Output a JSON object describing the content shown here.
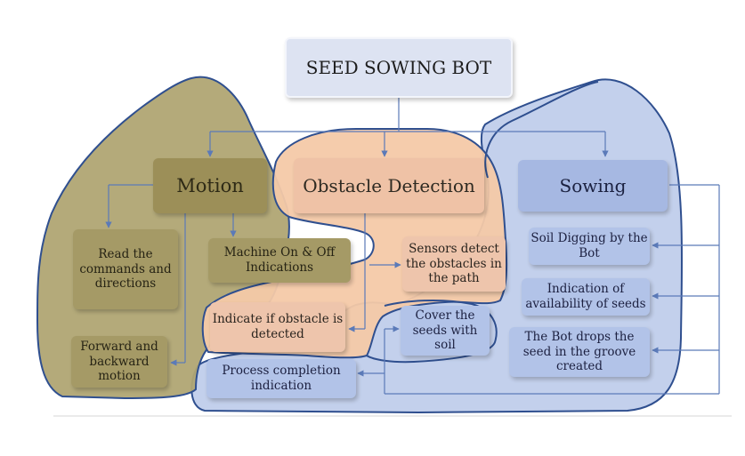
{
  "diagram": {
    "title": "SEED SOWING BOT",
    "groups": [
      {
        "heading": "Motion",
        "items": [
          "Read the commands and directions",
          "Machine On & Off Indications",
          "Forward and backward motion"
        ]
      },
      {
        "heading": "Obstacle Detection",
        "items": [
          "Sensors detect the obstacles in the path",
          "Indicate if obstacle is detected"
        ]
      },
      {
        "heading": "Sowing",
        "items": [
          "Soil Digging by the Bot",
          "Indication of availability of seeds",
          "The Bot drops the seed in the groove created",
          "Cover the seeds with soil",
          "Process completion indication"
        ]
      }
    ],
    "colors": {
      "motion_region": "#b0a573",
      "obstacle_region": "#f4c9a8",
      "sowing_region": "#bccbea",
      "region_outline": "#2f4f8f",
      "connector": "#5b7ab8"
    }
  }
}
